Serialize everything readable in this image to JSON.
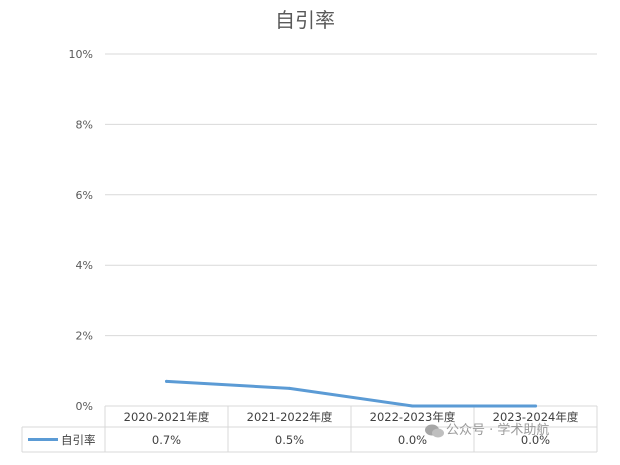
{
  "chart_data": {
    "type": "line",
    "title": "自引率",
    "categories": [
      "2020-2021年度",
      "2021-2022年度",
      "2022-2023年度",
      "2023-2024年度"
    ],
    "series": [
      {
        "name": "自引率",
        "values": [
          0.7,
          0.5,
          0.0,
          0.0
        ],
        "labels": [
          "0.7%",
          "0.5%",
          "0.0%",
          "0.0%"
        ],
        "color": "#5b9bd5"
      }
    ],
    "y_ticks": [
      "0%",
      "2%",
      "4%",
      "6%",
      "8%",
      "10%"
    ],
    "ylim": [
      0,
      10
    ],
    "grid": true,
    "legend_placement": "data-table-left",
    "gridline_color": "#d9d9d9"
  },
  "watermark": {
    "text": "公众号 · 学术助航"
  }
}
